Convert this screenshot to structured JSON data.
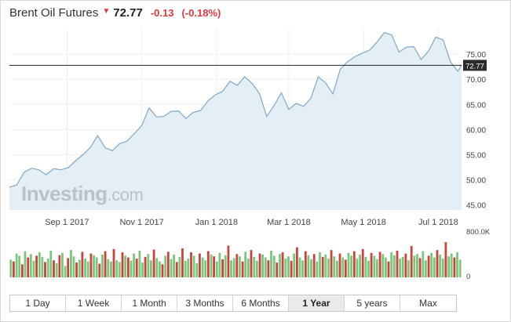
{
  "header": {
    "title": "Brent Oil Futures",
    "direction_icon": "down-triangle-icon",
    "price": "72.77",
    "change": "-0.13",
    "change_pct": "(-0.18%)"
  },
  "colors": {
    "negative": "#e03a3e",
    "line": "#7fa8c9",
    "area_fill": "#e4eef5",
    "volume_up": "#7cc57c",
    "volume_down": "#c9453c"
  },
  "watermark": "Investing.com",
  "current_price_label": "72.77",
  "periods": [
    {
      "label": "1 Day",
      "active": false
    },
    {
      "label": "1 Week",
      "active": false
    },
    {
      "label": "1 Month",
      "active": false
    },
    {
      "label": "3 Months",
      "active": false
    },
    {
      "label": "6 Months",
      "active": false
    },
    {
      "label": "1 Year",
      "active": true
    },
    {
      "label": "5 years",
      "active": false
    },
    {
      "label": "Max",
      "active": false
    }
  ],
  "chart_data": {
    "type": "area",
    "title": "Brent Oil Futures",
    "y_ticks": [
      "75.00",
      "70.00",
      "65.00",
      "60.00",
      "55.00",
      "50.00",
      "45.00"
    ],
    "y_tick_values": [
      75,
      70,
      65,
      60,
      55,
      50,
      45
    ],
    "ylim": [
      44,
      80
    ],
    "x_ticks": [
      "Sep 1 2017",
      "Nov 1 2017",
      "Jan 1 2018",
      "Mar 1 2018",
      "May 1 2018",
      "Jul 1 2018"
    ],
    "x_tick_dates": [
      "2017-09-01",
      "2017-11-01",
      "2018-01-01",
      "2018-03-01",
      "2018-05-01",
      "2018-07-01"
    ],
    "x_range": [
      "2017-07-16",
      "2018-07-20"
    ],
    "current_value": 72.77,
    "series": [
      {
        "values": [
          [
            "2017-07-16",
            48.5
          ],
          [
            "2017-07-22",
            49.0
          ],
          [
            "2017-07-28",
            51.5
          ],
          [
            "2017-08-03",
            52.3
          ],
          [
            "2017-08-09",
            52.0
          ],
          [
            "2017-08-15",
            51.0
          ],
          [
            "2017-08-21",
            52.2
          ],
          [
            "2017-08-27",
            52.0
          ],
          [
            "2017-09-02",
            52.4
          ],
          [
            "2017-09-08",
            53.8
          ],
          [
            "2017-09-14",
            55.0
          ],
          [
            "2017-09-20",
            56.4
          ],
          [
            "2017-09-26",
            58.8
          ],
          [
            "2017-10-02",
            56.4
          ],
          [
            "2017-10-08",
            55.8
          ],
          [
            "2017-10-14",
            57.2
          ],
          [
            "2017-10-20",
            57.7
          ],
          [
            "2017-10-26",
            59.2
          ],
          [
            "2017-11-01",
            60.8
          ],
          [
            "2017-11-07",
            64.3
          ],
          [
            "2017-11-13",
            62.5
          ],
          [
            "2017-11-19",
            62.6
          ],
          [
            "2017-11-25",
            63.6
          ],
          [
            "2017-12-01",
            63.7
          ],
          [
            "2017-12-07",
            62.2
          ],
          [
            "2017-12-13",
            63.4
          ],
          [
            "2017-12-19",
            63.8
          ],
          [
            "2017-12-25",
            65.7
          ],
          [
            "2017-12-31",
            66.9
          ],
          [
            "2018-01-06",
            67.6
          ],
          [
            "2018-01-12",
            69.6
          ],
          [
            "2018-01-18",
            68.8
          ],
          [
            "2018-01-24",
            70.5
          ],
          [
            "2018-01-30",
            69.2
          ],
          [
            "2018-02-05",
            67.2
          ],
          [
            "2018-02-11",
            62.6
          ],
          [
            "2018-02-17",
            64.8
          ],
          [
            "2018-02-23",
            67.3
          ],
          [
            "2018-03-01",
            64.0
          ],
          [
            "2018-03-07",
            65.2
          ],
          [
            "2018-03-13",
            64.6
          ],
          [
            "2018-03-19",
            66.2
          ],
          [
            "2018-03-25",
            70.5
          ],
          [
            "2018-03-31",
            69.3
          ],
          [
            "2018-04-06",
            67.1
          ],
          [
            "2018-04-12",
            72.0
          ],
          [
            "2018-04-18",
            73.5
          ],
          [
            "2018-04-24",
            74.5
          ],
          [
            "2018-04-30",
            75.2
          ],
          [
            "2018-05-06",
            75.8
          ],
          [
            "2018-05-12",
            77.4
          ],
          [
            "2018-05-18",
            79.3
          ],
          [
            "2018-05-24",
            78.8
          ],
          [
            "2018-05-30",
            75.4
          ],
          [
            "2018-06-05",
            76.4
          ],
          [
            "2018-06-11",
            76.5
          ],
          [
            "2018-06-17",
            73.9
          ],
          [
            "2018-06-23",
            75.6
          ],
          [
            "2018-06-29",
            78.4
          ],
          [
            "2018-07-05",
            77.8
          ],
          [
            "2018-07-11",
            73.4
          ],
          [
            "2018-07-17",
            71.6
          ],
          [
            "2018-07-20",
            72.8
          ]
        ]
      }
    ],
    "volume_axis_ticks": [
      "800.0K",
      "0"
    ],
    "volume_max": 800000,
    "volume": [
      [
        310,
        1
      ],
      [
        280,
        0
      ],
      [
        420,
        1
      ],
      [
        380,
        1
      ],
      [
        230,
        0
      ],
      [
        460,
        1
      ],
      [
        350,
        0
      ],
      [
        410,
        1
      ],
      [
        290,
        1
      ],
      [
        380,
        0
      ],
      [
        440,
        1
      ],
      [
        360,
        1
      ],
      [
        270,
        0
      ],
      [
        330,
        1
      ],
      [
        470,
        1
      ],
      [
        300,
        0
      ],
      [
        250,
        1
      ],
      [
        390,
        0
      ],
      [
        430,
        1
      ],
      [
        200,
        1
      ],
      [
        340,
        0
      ],
      [
        480,
        1
      ],
      [
        370,
        1
      ],
      [
        260,
        0
      ],
      [
        310,
        1
      ],
      [
        450,
        0
      ],
      [
        330,
        1
      ],
      [
        280,
        1
      ],
      [
        420,
        0
      ],
      [
        390,
        1
      ],
      [
        350,
        1
      ],
      [
        240,
        0
      ],
      [
        400,
        1
      ],
      [
        460,
        0
      ],
      [
        320,
        1
      ],
      [
        280,
        1
      ],
      [
        500,
        0
      ],
      [
        300,
        1
      ],
      [
        270,
        1
      ],
      [
        440,
        0
      ],
      [
        380,
        1
      ],
      [
        350,
        0
      ],
      [
        290,
        1
      ],
      [
        420,
        1
      ],
      [
        330,
        0
      ],
      [
        470,
        1
      ],
      [
        260,
        1
      ],
      [
        360,
        0
      ],
      [
        410,
        1
      ],
      [
        300,
        1
      ],
      [
        490,
        0
      ],
      [
        340,
        1
      ],
      [
        280,
        1
      ],
      [
        230,
        0
      ],
      [
        380,
        1
      ],
      [
        450,
        0
      ],
      [
        320,
        1
      ],
      [
        400,
        1
      ],
      [
        270,
        0
      ],
      [
        360,
        1
      ],
      [
        510,
        0
      ],
      [
        290,
        1
      ],
      [
        330,
        1
      ],
      [
        440,
        0
      ],
      [
        380,
        1
      ],
      [
        250,
        1
      ],
      [
        420,
        0
      ],
      [
        350,
        1
      ],
      [
        300,
        1
      ],
      [
        460,
        0
      ],
      [
        400,
        1
      ],
      [
        370,
        0
      ],
      [
        280,
        1
      ],
      [
        430,
        1
      ],
      [
        320,
        0
      ],
      [
        390,
        1
      ],
      [
        560,
        0
      ],
      [
        300,
        1
      ],
      [
        340,
        1
      ],
      [
        410,
        0
      ],
      [
        370,
        1
      ],
      [
        280,
        0
      ],
      [
        450,
        1
      ],
      [
        330,
        1
      ],
      [
        480,
        0
      ],
      [
        360,
        1
      ],
      [
        290,
        1
      ],
      [
        420,
        0
      ],
      [
        400,
        1
      ],
      [
        350,
        1
      ],
      [
        300,
        0
      ],
      [
        470,
        1
      ],
      [
        380,
        1
      ],
      [
        260,
        0
      ],
      [
        410,
        1
      ],
      [
        440,
        0
      ],
      [
        330,
        1
      ],
      [
        370,
        1
      ],
      [
        290,
        0
      ],
      [
        420,
        1
      ],
      [
        530,
        0
      ],
      [
        350,
        1
      ],
      [
        300,
        1
      ],
      [
        460,
        0
      ],
      [
        390,
        1
      ],
      [
        320,
        1
      ],
      [
        410,
        0
      ],
      [
        280,
        1
      ],
      [
        440,
        1
      ],
      [
        360,
        0
      ],
      [
        400,
        1
      ],
      [
        330,
        1
      ],
      [
        480,
        0
      ],
      [
        370,
        1
      ],
      [
        290,
        1
      ],
      [
        420,
        0
      ],
      [
        350,
        1
      ],
      [
        310,
        0
      ],
      [
        430,
        1
      ],
      [
        380,
        1
      ],
      [
        460,
        0
      ],
      [
        330,
        1
      ],
      [
        400,
        1
      ],
      [
        500,
        0
      ],
      [
        360,
        1
      ],
      [
        290,
        1
      ],
      [
        430,
        0
      ],
      [
        380,
        1
      ],
      [
        320,
        1
      ],
      [
        450,
        0
      ],
      [
        410,
        1
      ],
      [
        350,
        1
      ],
      [
        280,
        0
      ],
      [
        440,
        1
      ],
      [
        390,
        1
      ],
      [
        470,
        0
      ],
      [
        330,
        1
      ],
      [
        360,
        1
      ],
      [
        420,
        0
      ],
      [
        300,
        1
      ],
      [
        550,
        0
      ],
      [
        380,
        1
      ],
      [
        410,
        1
      ],
      [
        340,
        0
      ],
      [
        460,
        1
      ],
      [
        300,
        1
      ],
      [
        380,
        0
      ],
      [
        430,
        1
      ],
      [
        350,
        1
      ],
      [
        480,
        0
      ],
      [
        400,
        1
      ],
      [
        330,
        1
      ],
      [
        620,
        0
      ],
      [
        370,
        1
      ],
      [
        420,
        1
      ],
      [
        350,
        0
      ],
      [
        440,
        1
      ],
      [
        310,
        1
      ]
    ]
  }
}
